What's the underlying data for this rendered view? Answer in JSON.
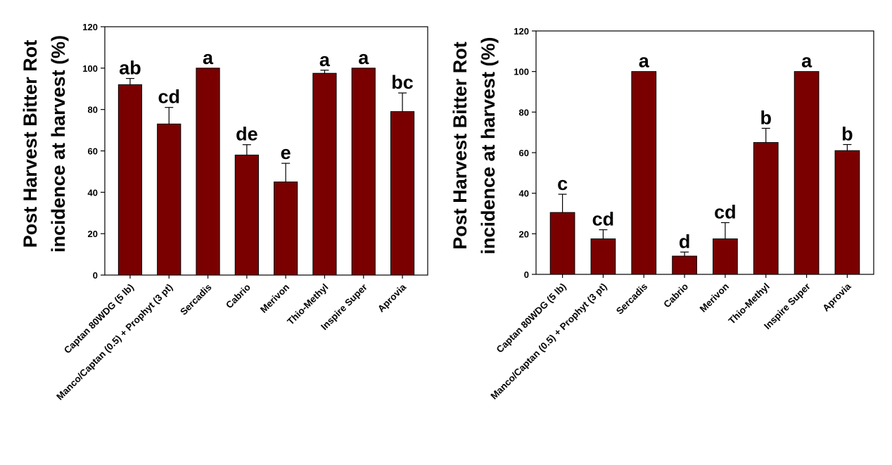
{
  "chart_data": [
    {
      "type": "bar",
      "ylabel": [
        "Post Harvest Bitter Rot",
        "incidence at harvest (%)"
      ],
      "ylim": [
        0,
        120
      ],
      "yticks": [
        0,
        20,
        40,
        60,
        80,
        100,
        120
      ],
      "categories": [
        "Captan 80WDG (5 lb)",
        "Manco/Captan (0.5) + Prophyt (3 pt)",
        "Sercadis",
        "Cabrio",
        "Merivon",
        "Thio-Methyl",
        "Inspire Super",
        "Aprovia"
      ],
      "values": [
        92,
        73,
        100,
        58,
        45,
        97.5,
        100,
        79
      ],
      "error": [
        3,
        8,
        0,
        5,
        9,
        1.5,
        0,
        9
      ],
      "letters": [
        "ab",
        "cd",
        "a",
        "de",
        "e",
        "a",
        "a",
        "bc"
      ],
      "bar_color": "#7a0000",
      "grid": false
    },
    {
      "type": "bar",
      "ylabel": [
        "Post Harvest Bitter Rot",
        "incidence at harvest (%)"
      ],
      "ylim": [
        0,
        120
      ],
      "yticks": [
        0,
        20,
        40,
        60,
        80,
        100,
        120
      ],
      "categories": [
        "Captan 80WDG (5 lb)",
        "Manco/Captan (0.5) + Prophyt (3 pt)",
        "Sercadis",
        "Cabrio",
        "Merivon",
        "Thio-Methyl",
        "Inspire Super",
        "Aprovia"
      ],
      "values": [
        30.5,
        17.5,
        100,
        9,
        17.5,
        65,
        100,
        61
      ],
      "error": [
        9,
        4.5,
        0,
        2,
        8,
        7,
        0,
        3
      ],
      "letters": [
        "c",
        "cd",
        "a",
        "d",
        "cd",
        "b",
        "a",
        "b"
      ],
      "bar_color": "#7a0000",
      "grid": false
    }
  ]
}
